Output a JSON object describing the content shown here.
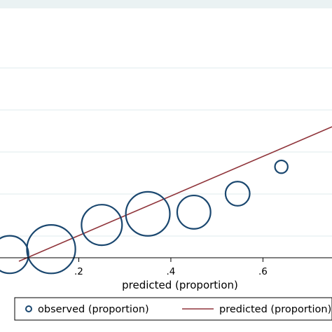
{
  "chart_data": {
    "type": "scatter",
    "title": "",
    "xlabel": "predicted (proportion)",
    "ylabel": "",
    "xlim": [
      0.0,
      0.75
    ],
    "ylim": [
      0.0,
      0.75
    ],
    "x_ticks": [
      0.2,
      0.4,
      0.6
    ],
    "x_tick_labels": [
      ".2",
      ".4",
      ".6"
    ],
    "y_grid": [
      0.0,
      0.125,
      0.25,
      0.375,
      0.5,
      0.625
    ],
    "grid": true,
    "legend_position": "bottom",
    "colors": {
      "observed": "#1a476f",
      "predicted": "#90353b",
      "grid": "#eaf2f3",
      "axis": "#000000"
    },
    "series": [
      {
        "name": "observed (proportion)",
        "kind": "scatter",
        "marker": "hollow-circle",
        "points": [
          {
            "x": 0.05,
            "y": 0.07,
            "weight": 2.4
          },
          {
            "x": 0.14,
            "y": 0.086,
            "weight": 4.0
          },
          {
            "x": 0.25,
            "y": 0.158,
            "weight": 2.8
          },
          {
            "x": 0.35,
            "y": 0.191,
            "weight": 3.3
          },
          {
            "x": 0.45,
            "y": 0.196,
            "weight": 1.9
          },
          {
            "x": 0.545,
            "y": 0.251,
            "weight": 1.0
          },
          {
            "x": 0.64,
            "y": 0.331,
            "weight": 0.28
          }
        ]
      },
      {
        "name": "predicted (proportion)",
        "kind": "line",
        "points": [
          {
            "x": 0.07,
            "y": 0.05
          },
          {
            "x": 0.75,
            "y": 0.45
          }
        ]
      }
    ]
  }
}
